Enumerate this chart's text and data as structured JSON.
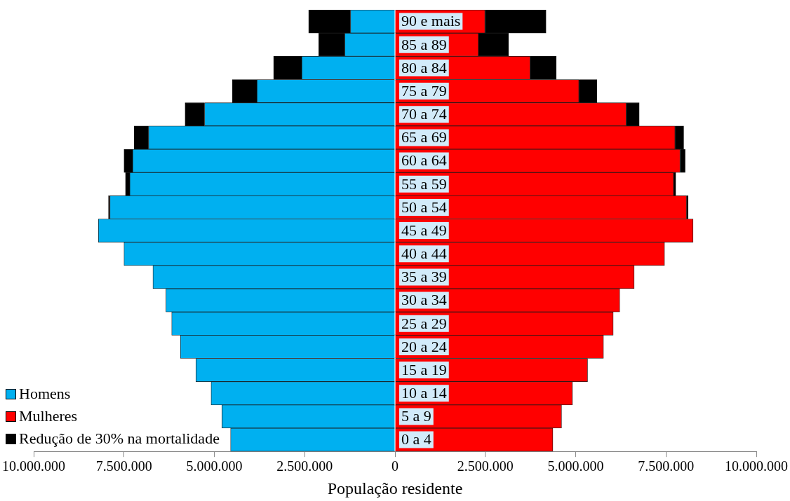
{
  "chart_data": {
    "type": "bar",
    "orientation": "horizontal",
    "stacked": true,
    "xlabel": "População residente",
    "categories": [
      "90 e mais",
      "85 a 89",
      "80 a 84",
      "75 a 79",
      "70 a 74",
      "65 a 69",
      "60 a 64",
      "55 a 59",
      "50 a 54",
      "45 a 49",
      "40 a 44",
      "35 a 39",
      "30 a 34",
      "25 a 29",
      "20 a 24",
      "15 a 19",
      "10 a 14",
      "5 a 9",
      "0 a 4"
    ],
    "series": [
      {
        "name": "Homens",
        "color": "#00b0f0",
        "values": [
          -1230000,
          -1390000,
          -2580000,
          -3820000,
          -5270000,
          -6820000,
          -7260000,
          -7340000,
          -7890000,
          -8210000,
          -7500000,
          -6700000,
          -6340000,
          -6180000,
          -5940000,
          -5510000,
          -5090000,
          -4790000,
          -4550000
        ]
      },
      {
        "name": "Mulheres",
        "color": "#ff0000",
        "values": [
          2490000,
          2310000,
          3740000,
          5090000,
          6400000,
          7750000,
          7890000,
          7710000,
          8070000,
          8250000,
          7460000,
          6620000,
          6220000,
          6040000,
          5770000,
          5330000,
          4910000,
          4610000,
          4370000
        ]
      },
      {
        "name": "Redução de 30% na mortalidade",
        "color": "#000000",
        "values": [
          -1160000,
          -720000,
          -780000,
          -680000,
          -540000,
          -400000,
          -240000,
          -120000,
          -40000,
          0,
          0,
          0,
          0,
          0,
          0,
          0,
          0,
          0,
          0
        ]
      },
      {
        "color": "#000000",
        "values": [
          1690000,
          830000,
          720000,
          500000,
          360000,
          240000,
          140000,
          60000,
          40000,
          0,
          0,
          0,
          0,
          0,
          0,
          0,
          0,
          0,
          0
        ]
      }
    ],
    "xlim": [
      -10000000,
      10000000
    ],
    "xticks": [
      {
        "value": -10000000,
        "label": "10.000.000"
      },
      {
        "value": -7500000,
        "label": "7.500.000"
      },
      {
        "value": -5000000,
        "label": "5.000.000"
      },
      {
        "value": -2500000,
        "label": "2.500.000"
      },
      0,
      {
        "value": 2500000,
        "label": "2.500.000"
      },
      {
        "value": 5000000,
        "label": "5.000.000"
      },
      {
        "value": 7500000,
        "label": "7.500.000"
      },
      {
        "value": 10000000,
        "label": "10.000.000"
      }
    ],
    "grid": false,
    "legend": "bottom left"
  }
}
